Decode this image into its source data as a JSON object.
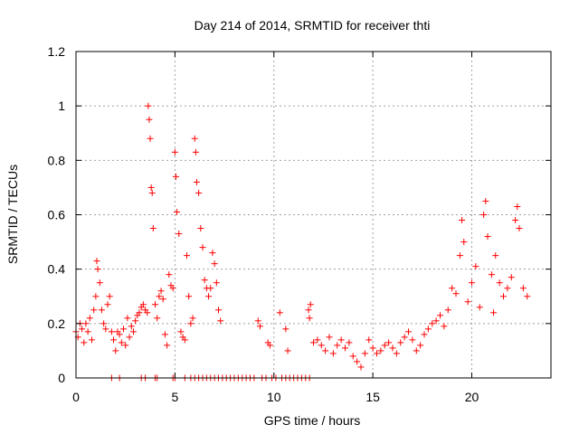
{
  "chart_data": {
    "type": "scatter",
    "title": "Day 214 of 2014, SRMTID for receiver thti",
    "xlabel": "GPS time / hours",
    "ylabel": "SRMTID / TECUs",
    "xlim": [
      0,
      24
    ],
    "ylim": [
      0,
      1.2
    ],
    "x_ticks": [
      0,
      5,
      10,
      15,
      20
    ],
    "x_tick_labels": [
      "0",
      "5",
      "10",
      "15",
      "20"
    ],
    "y_ticks": [
      0,
      0.2,
      0.4,
      0.6,
      0.8,
      1,
      1.2
    ],
    "y_tick_labels": [
      "0",
      "0.2",
      "0.4",
      "0.6",
      "0.8",
      "1",
      "1.2"
    ],
    "grid": true,
    "legend": "none",
    "marker": "+",
    "series": [
      {
        "name": "SRMTID",
        "color": "#ff0000",
        "x": [
          0.0,
          0.1,
          0.2,
          0.3,
          0.4,
          0.5,
          0.6,
          0.7,
          0.8,
          0.9,
          1.0,
          1.05,
          1.1,
          1.2,
          1.3,
          1.4,
          1.5,
          1.6,
          1.7,
          1.8,
          1.9,
          2.0,
          2.1,
          2.2,
          2.3,
          2.4,
          2.5,
          2.6,
          2.7,
          2.8,
          2.9,
          3.0,
          3.1,
          3.2,
          3.3,
          3.4,
          3.5,
          3.6,
          3.65,
          3.7,
          3.75,
          3.8,
          3.85,
          3.9,
          4.0,
          4.1,
          4.2,
          4.3,
          4.4,
          4.5,
          4.6,
          4.7,
          4.8,
          4.9,
          5.0,
          5.05,
          5.1,
          5.2,
          5.3,
          5.4,
          5.5,
          5.6,
          5.7,
          5.8,
          5.9,
          6.0,
          6.05,
          6.1,
          6.2,
          6.3,
          6.4,
          6.5,
          6.6,
          6.7,
          6.8,
          6.9,
          7.0,
          7.1,
          7.2,
          7.3,
          9.2,
          9.3,
          9.7,
          9.8,
          10.3,
          10.6,
          10.7,
          11.75,
          11.8,
          11.85,
          12.0,
          12.2,
          12.4,
          12.6,
          12.8,
          13.0,
          13.2,
          13.4,
          13.6,
          13.8,
          14.0,
          14.2,
          14.4,
          14.6,
          14.8,
          15.0,
          15.2,
          15.4,
          15.6,
          15.8,
          16.0,
          16.2,
          16.4,
          16.6,
          16.8,
          17.0,
          17.2,
          17.4,
          17.6,
          17.8,
          18.0,
          18.2,
          18.4,
          18.6,
          18.8,
          19.0,
          19.2,
          19.4,
          19.5,
          19.6,
          19.8,
          20.0,
          20.2,
          20.4,
          20.6,
          20.7,
          20.8,
          21.0,
          21.1,
          21.2,
          21.4,
          21.6,
          21.8,
          22.0,
          22.2,
          22.3,
          22.4,
          22.6,
          22.8,
          1.8,
          2.2,
          3.3,
          3.5,
          4.0,
          4.1,
          4.9,
          5.0,
          5.5,
          5.8,
          6.0,
          6.2,
          6.4,
          6.6,
          6.8,
          7.0,
          7.2,
          7.4,
          7.6,
          7.8,
          8.0,
          8.2,
          8.4,
          8.6,
          8.8,
          9.0,
          9.4,
          9.6,
          9.9,
          10.1,
          10.4,
          10.6,
          10.8,
          11.0,
          11.2,
          11.4,
          11.6,
          11.8
        ],
        "y": [
          0.17,
          0.15,
          0.2,
          0.18,
          0.13,
          0.2,
          0.17,
          0.22,
          0.14,
          0.25,
          0.3,
          0.43,
          0.4,
          0.35,
          0.25,
          0.2,
          0.18,
          0.27,
          0.3,
          0.17,
          0.14,
          0.1,
          0.17,
          0.16,
          0.13,
          0.18,
          0.12,
          0.22,
          0.15,
          0.19,
          0.17,
          0.21,
          0.23,
          0.24,
          0.26,
          0.27,
          0.25,
          0.24,
          1.0,
          0.95,
          0.88,
          0.7,
          0.68,
          0.55,
          0.27,
          0.22,
          0.3,
          0.32,
          0.29,
          0.16,
          0.12,
          0.38,
          0.34,
          0.33,
          0.83,
          0.74,
          0.61,
          0.53,
          0.17,
          0.15,
          0.14,
          0.45,
          0.3,
          0.2,
          0.22,
          0.88,
          0.83,
          0.72,
          0.68,
          0.55,
          0.48,
          0.36,
          0.33,
          0.3,
          0.33,
          0.46,
          0.42,
          0.35,
          0.25,
          0.21,
          0.21,
          0.19,
          0.13,
          0.12,
          0.24,
          0.18,
          0.1,
          0.25,
          0.22,
          0.27,
          0.13,
          0.14,
          0.12,
          0.1,
          0.15,
          0.09,
          0.12,
          0.14,
          0.11,
          0.13,
          0.08,
          0.06,
          0.04,
          0.09,
          0.14,
          0.11,
          0.09,
          0.1,
          0.12,
          0.13,
          0.11,
          0.09,
          0.13,
          0.15,
          0.17,
          0.14,
          0.1,
          0.12,
          0.16,
          0.18,
          0.2,
          0.21,
          0.23,
          0.19,
          0.25,
          0.33,
          0.31,
          0.45,
          0.58,
          0.5,
          0.28,
          0.35,
          0.41,
          0.26,
          0.6,
          0.65,
          0.52,
          0.38,
          0.24,
          0.45,
          0.35,
          0.3,
          0.33,
          0.37,
          0.58,
          0.63,
          0.55,
          0.33,
          0.3,
          0.0,
          0.0,
          0.0,
          0.0,
          0.0,
          0.0,
          0.0,
          0.0,
          0.0,
          0.0,
          0.0,
          0.0,
          0.0,
          0.0,
          0.0,
          0.0,
          0.0,
          0.0,
          0.0,
          0.0,
          0.0,
          0.0,
          0.0,
          0.0,
          0.0,
          0.0,
          0.0,
          0.0,
          0.0,
          0.0,
          0.0,
          0.0,
          0.0,
          0.0,
          0.0,
          0.0,
          0.0,
          0.0
        ]
      }
    ]
  }
}
